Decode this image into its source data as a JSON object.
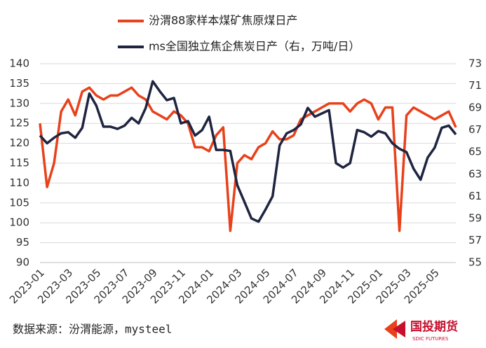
{
  "chart_data": {
    "type": "line",
    "categories": [
      "2023-01",
      null,
      null,
      null,
      "2023-03",
      null,
      null,
      null,
      "2023-05",
      null,
      null,
      null,
      "2023-07",
      null,
      null,
      null,
      "2023-09",
      null,
      null,
      null,
      "2023-11",
      null,
      null,
      null,
      "2024-01",
      null,
      null,
      null,
      "2024-03",
      null,
      null,
      null,
      "2024-05",
      null,
      null,
      null,
      "2024-07",
      null,
      null,
      null,
      "2024-09",
      null,
      null,
      null,
      "2024-11",
      null,
      null,
      null,
      "2025-01",
      null,
      null,
      null,
      "2025-03",
      null,
      null,
      null,
      "2025-05",
      null,
      null,
      null
    ],
    "series": [
      {
        "name": "汾渭88家样本煤矿焦原煤日产",
        "color": "#e8411b",
        "values": [
          125,
          109,
          115,
          128,
          131,
          127,
          133,
          134,
          132,
          131,
          132,
          132,
          133,
          134,
          132,
          131,
          128,
          127,
          126,
          128,
          127,
          125,
          119,
          119,
          118,
          122,
          124,
          98,
          115,
          117,
          116,
          119,
          120,
          123,
          121,
          121,
          122,
          126,
          127,
          128,
          129,
          130,
          130,
          130,
          128,
          130,
          131,
          130,
          126,
          129,
          129,
          98,
          127,
          129,
          128,
          127,
          126,
          127,
          128,
          124
        ]
      },
      {
        "name": "ms全国独立焦企焦炭日产（右，万吨/日）",
        "color": "#1f2440",
        "axis": "y2",
        "values": [
          66.5,
          65.8,
          66.3,
          66.7,
          66.8,
          66.3,
          67.2,
          70.3,
          69.2,
          67.3,
          67.3,
          67.1,
          67.4,
          68.1,
          67.6,
          69,
          71.4,
          70.5,
          69.7,
          69.9,
          67.6,
          67.8,
          66.5,
          67,
          68.2,
          65.2,
          65.2,
          65.1,
          62,
          60.5,
          59,
          58.7,
          59.8,
          61,
          65.6,
          66.7,
          67,
          67.5,
          69,
          68.2,
          68.5,
          68.8,
          64,
          63.6,
          64,
          67,
          66.8,
          66.4,
          66.9,
          66.7,
          65.8,
          65.3,
          65,
          63.5,
          62.5,
          64.5,
          65.4,
          67.2,
          67.4,
          66.6
        ]
      }
    ],
    "ylim": [
      90,
      140
    ],
    "yticks": [
      90,
      95,
      100,
      105,
      110,
      115,
      120,
      125,
      130,
      135,
      140
    ],
    "y2lim": [
      55,
      73
    ],
    "y2ticks": [
      55,
      57,
      59,
      61,
      63,
      65,
      67,
      69,
      71,
      73
    ],
    "grid": true,
    "source": "数据来源：汾渭能源，mysteel",
    "logo": "国投期货",
    "logo_sub": "SDIC FUTURES"
  }
}
